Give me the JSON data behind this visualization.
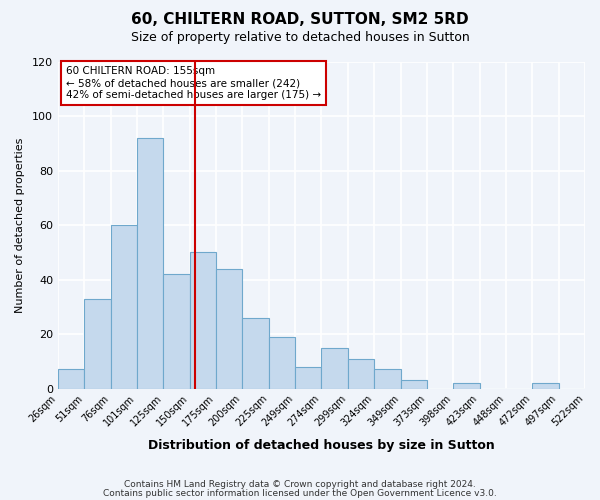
{
  "title": "60, CHILTERN ROAD, SUTTON, SM2 5RD",
  "subtitle": "Size of property relative to detached houses in Sutton",
  "xlabel": "Distribution of detached houses by size in Sutton",
  "ylabel": "Number of detached properties",
  "bin_edges": [
    26,
    51,
    76,
    101,
    125,
    150,
    175,
    200,
    225,
    249,
    274,
    299,
    324,
    349,
    373,
    398,
    423,
    448,
    472,
    497,
    522
  ],
  "bin_labels": [
    "26sqm",
    "51sqm",
    "76sqm",
    "101sqm",
    "125sqm",
    "150sqm",
    "175sqm",
    "200sqm",
    "225sqm",
    "249sqm",
    "274sqm",
    "299sqm",
    "324sqm",
    "349sqm",
    "373sqm",
    "398sqm",
    "423sqm",
    "448sqm",
    "472sqm",
    "497sqm",
    "522sqm"
  ],
  "bar_values": [
    7,
    33,
    60,
    92,
    42,
    50,
    44,
    26,
    19,
    8,
    15,
    11,
    7,
    3,
    0,
    2,
    0,
    0,
    2,
    0
  ],
  "bar_color": "#c5d9ed",
  "bar_edge_color": "#6fa8cc",
  "ylim": [
    0,
    120
  ],
  "yticks": [
    0,
    20,
    40,
    60,
    80,
    100,
    120
  ],
  "property_line_label": "60 CHILTERN ROAD: 155sqm",
  "annotation_line1": "← 58% of detached houses are smaller (242)",
  "annotation_line2": "42% of semi-detached houses are larger (175) →",
  "line_color": "#cc0000",
  "footer1": "Contains HM Land Registry data © Crown copyright and database right 2024.",
  "footer2": "Contains public sector information licensed under the Open Government Licence v3.0.",
  "background_color": "#f0f4fa"
}
